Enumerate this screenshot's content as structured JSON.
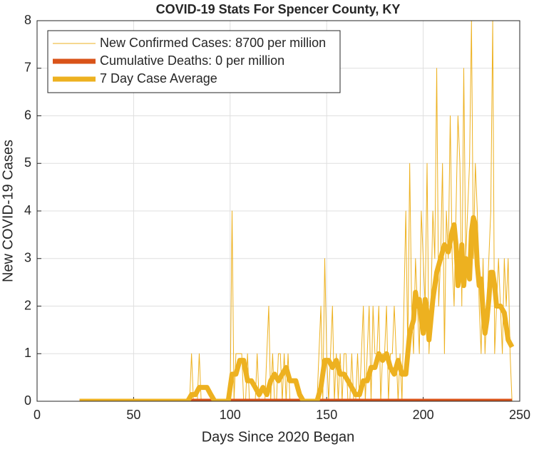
{
  "chart_data": {
    "type": "line",
    "title": "COVID-19 Stats For Spencer County, KY",
    "xlabel": "Days Since 2020 Began",
    "ylabel": "New COVID-19 Cases",
    "xlim": [
      0,
      250
    ],
    "xticks": [
      0,
      50,
      100,
      150,
      200,
      250
    ],
    "ylim": [
      0,
      8
    ],
    "yticks": [
      0,
      1,
      2,
      3,
      4,
      5,
      6,
      7,
      8
    ],
    "grid": true,
    "legend": "upper left",
    "series": [
      {
        "name": "New Confirmed Cases: 8700 per million",
        "color": "#edb120",
        "width": 1,
        "x": [
          22,
          78,
          79,
          80,
          81,
          82,
          83,
          84,
          85,
          86,
          87,
          88,
          89,
          90,
          91,
          92,
          93,
          94,
          95,
          96,
          97,
          98,
          99,
          100,
          101,
          102,
          103,
          104,
          105,
          106,
          107,
          108,
          109,
          110,
          111,
          112,
          113,
          114,
          115,
          116,
          117,
          118,
          119,
          120,
          121,
          122,
          123,
          124,
          125,
          126,
          127,
          128,
          129,
          130,
          131,
          132,
          133,
          134,
          135,
          136,
          137,
          138,
          139,
          140,
          141,
          142,
          143,
          144,
          145,
          146,
          147,
          148,
          149,
          150,
          151,
          152,
          153,
          154,
          155,
          156,
          157,
          158,
          159,
          160,
          161,
          162,
          163,
          164,
          165,
          166,
          167,
          168,
          169,
          170,
          171,
          172,
          173,
          174,
          175,
          176,
          177,
          178,
          179,
          180,
          181,
          182,
          183,
          184,
          185,
          186,
          187,
          188,
          189,
          190,
          191,
          192,
          193,
          194,
          195,
          196,
          197,
          198,
          199,
          200,
          201,
          202,
          203,
          204,
          205,
          206,
          207,
          208,
          209,
          210,
          211,
          212,
          213,
          214,
          215,
          216,
          217,
          218,
          219,
          220,
          221,
          222,
          223,
          224,
          225,
          226,
          227,
          228,
          229,
          230,
          231,
          232,
          233,
          234,
          235,
          236,
          237,
          238,
          239,
          240,
          241,
          242,
          243,
          244,
          245,
          246
        ],
        "values": [
          0,
          0,
          0,
          1,
          0,
          0,
          0,
          1,
          0,
          0,
          0,
          0,
          0,
          0,
          0,
          0,
          0,
          0,
          0,
          0,
          0,
          0,
          0,
          0,
          4,
          0,
          1,
          1,
          1,
          1,
          0,
          0,
          1,
          0,
          0,
          0,
          0,
          1,
          0,
          0,
          0,
          0,
          1,
          2,
          0,
          1,
          0,
          0,
          1,
          1,
          0,
          1,
          0,
          1,
          0,
          0,
          0,
          0,
          0,
          0,
          0,
          0,
          0,
          0,
          0,
          0,
          0,
          0,
          0,
          1,
          2,
          0,
          3,
          1,
          0,
          1,
          2,
          0,
          1,
          0,
          1,
          0,
          1,
          1,
          0,
          0,
          1,
          0,
          0,
          1,
          0,
          1,
          2,
          0,
          1,
          2,
          0,
          2,
          1,
          1,
          2,
          0,
          1,
          1,
          2,
          0,
          1,
          1,
          2,
          1,
          0,
          1,
          0,
          2,
          4,
          1,
          5,
          2,
          1,
          3,
          2,
          1,
          4,
          3,
          2,
          5,
          1,
          2,
          4,
          3,
          7,
          2,
          3,
          5,
          1,
          4,
          3,
          6,
          3,
          2,
          4,
          6,
          5,
          2,
          7,
          3,
          4,
          5,
          8,
          3,
          5,
          4,
          2,
          1,
          3,
          1,
          2,
          3,
          4,
          8,
          1,
          2,
          3,
          2,
          1,
          3,
          2,
          3,
          1,
          0
        ]
      },
      {
        "name": "Cumulative Deaths: 0 per million",
        "color": "#d95319",
        "width": 7,
        "x": [
          22,
          246
        ],
        "values": [
          0,
          0
        ]
      },
      {
        "name": "7 Day Case Average",
        "color": "#edb120",
        "width": 7,
        "x": [
          22,
          78,
          80,
          82,
          84,
          88,
          90,
          92,
          99,
          101,
          103,
          105,
          107,
          109,
          111,
          113,
          115,
          117,
          119,
          121,
          123,
          125,
          127,
          129,
          131,
          134,
          136,
          138,
          145,
          147,
          149,
          151,
          153,
          155,
          157,
          159,
          161,
          163,
          165,
          167,
          169,
          171,
          173,
          175,
          177,
          179,
          181,
          183,
          185,
          187,
          189,
          191,
          193,
          195,
          196,
          197,
          198,
          199,
          200,
          201,
          202,
          203,
          205,
          207,
          209,
          211,
          213,
          215,
          216,
          217,
          218,
          219,
          220,
          221,
          222,
          223,
          224,
          225,
          226,
          227,
          228,
          229,
          230,
          231,
          232,
          233,
          234,
          235,
          236,
          237,
          238,
          240,
          242,
          244,
          246
        ],
        "values": [
          0,
          0,
          0.14,
          0.14,
          0.29,
          0.29,
          0.14,
          0,
          0,
          0.57,
          0.57,
          0.86,
          0.86,
          0.43,
          0.43,
          0.29,
          0.14,
          0.29,
          0.14,
          0.43,
          0.57,
          0.43,
          0.57,
          0.71,
          0.43,
          0.43,
          0.14,
          0,
          0,
          0.29,
          0.86,
          0.86,
          0.71,
          0.86,
          0.57,
          0.57,
          0.43,
          0.29,
          0.14,
          0.14,
          0.43,
          0.43,
          0.71,
          0.71,
          1,
          0.86,
          1,
          0.71,
          0.57,
          0.86,
          0.57,
          0.57,
          1.43,
          1.71,
          2.29,
          2,
          2.14,
          1.71,
          1.43,
          2.14,
          1.86,
          1.29,
          2.14,
          2.71,
          3,
          3.29,
          3.14,
          3.57,
          3.71,
          3.29,
          2.43,
          2.71,
          3.29,
          2.43,
          3,
          2.86,
          2.57,
          3.57,
          3.86,
          3.71,
          2.86,
          2.43,
          2.57,
          1.86,
          1.43,
          1.71,
          2.14,
          2.71,
          2.71,
          2.43,
          2,
          2,
          1.86,
          1.29,
          1.14
        ]
      }
    ]
  }
}
